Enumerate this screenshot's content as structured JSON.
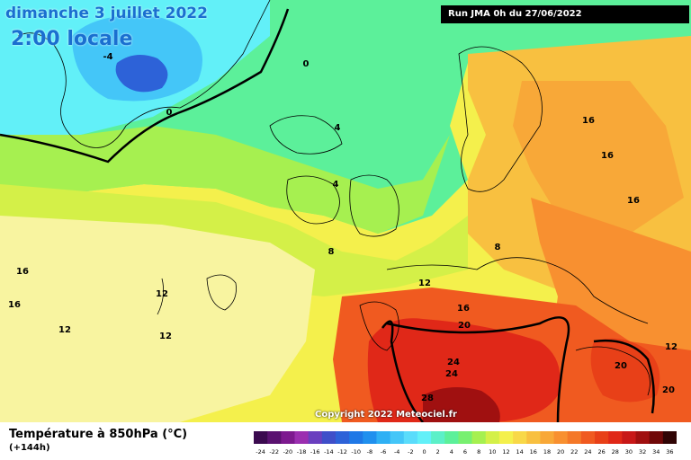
{
  "header": {
    "date": "dimanche 3 juillet 2022",
    "time": "2:00 locale",
    "run": "Run JMA 0h du 27/06/2022"
  },
  "footer": {
    "title": "Température à 850hPa (°C)",
    "lead": "(+144h)",
    "copyright": "Copyright 2022 Meteociel.fr"
  },
  "colorscale": {
    "ticks": [
      "-24",
      "-22",
      "-20",
      "-18",
      "-16",
      "-14",
      "-12",
      "-10",
      "-8",
      "-6",
      "-4",
      "-2",
      "0",
      "2",
      "4",
      "6",
      "8",
      "10",
      "12",
      "14",
      "16",
      "18",
      "20",
      "22",
      "24",
      "26",
      "28",
      "30",
      "32",
      "34",
      "36"
    ],
    "colors": [
      "#3b0a4f",
      "#5a1270",
      "#7d1a8f",
      "#9b2fb0",
      "#6a3fbf",
      "#3f4fc9",
      "#2d62d8",
      "#1f78e6",
      "#2090ee",
      "#2fb0f4",
      "#44c6f8",
      "#5adcfb",
      "#62f0f8",
      "#5cf0c8",
      "#5cf09a",
      "#78f070",
      "#a6f050",
      "#d4f048",
      "#f4f04c",
      "#f8d848",
      "#f8c040",
      "#f8a838",
      "#f89030",
      "#f47828",
      "#f05a20",
      "#e84018",
      "#e02818",
      "#c81818",
      "#a01010",
      "#700808",
      "#300404"
    ]
  },
  "contour_labels": [
    {
      "text": "-4"
    },
    {
      "text": "0"
    },
    {
      "text": "0"
    },
    {
      "text": "4"
    },
    {
      "text": "4"
    },
    {
      "text": "8"
    },
    {
      "text": "8"
    },
    {
      "text": "12"
    },
    {
      "text": "12"
    },
    {
      "text": "12"
    },
    {
      "text": "12"
    },
    {
      "text": "12"
    },
    {
      "text": "16"
    },
    {
      "text": "16"
    },
    {
      "text": "16"
    },
    {
      "text": "16"
    },
    {
      "text": "16"
    },
    {
      "text": "16"
    },
    {
      "text": "20"
    },
    {
      "text": "20"
    },
    {
      "text": "20"
    },
    {
      "text": "24"
    },
    {
      "text": "24"
    },
    {
      "text": "28"
    }
  ]
}
